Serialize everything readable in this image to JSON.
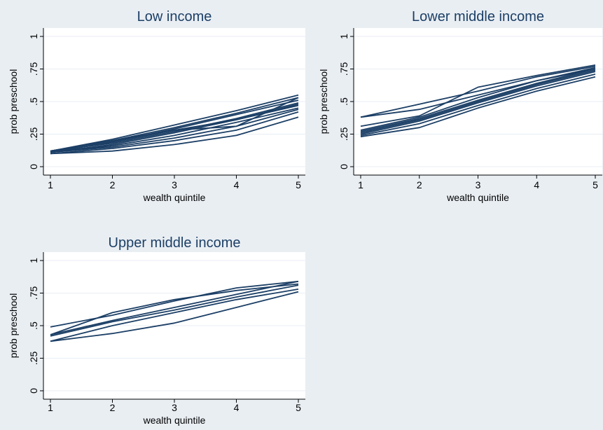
{
  "chart_data": [
    {
      "type": "line",
      "title": "Low income",
      "xlabel": "wealth quintile",
      "ylabel": "prob preschool",
      "x": [
        1,
        2,
        3,
        4,
        5
      ],
      "xticks": [
        "1",
        "2",
        "3",
        "4",
        "5"
      ],
      "yticks": [
        0,
        0.25,
        0.5,
        0.75,
        1
      ],
      "ytick_labels": [
        "0",
        ".25",
        ".5",
        ".75",
        "1"
      ],
      "xlim": [
        1,
        5
      ],
      "ylim": [
        0,
        1
      ],
      "grid": true,
      "series": [
        {
          "values": [
            0.12,
            0.21,
            0.32,
            0.43,
            0.55
          ]
        },
        {
          "values": [
            0.12,
            0.2,
            0.3,
            0.41,
            0.53
          ]
        },
        {
          "values": [
            0.11,
            0.19,
            0.29,
            0.4,
            0.51
          ]
        },
        {
          "values": [
            0.12,
            0.18,
            0.27,
            0.37,
            0.49
          ]
        },
        {
          "values": [
            0.11,
            0.17,
            0.26,
            0.36,
            0.47
          ]
        },
        {
          "values": [
            0.11,
            0.16,
            0.24,
            0.34,
            0.45
          ]
        },
        {
          "values": [
            0.11,
            0.15,
            0.22,
            0.31,
            0.44
          ]
        },
        {
          "values": [
            0.1,
            0.14,
            0.2,
            0.28,
            0.42
          ]
        },
        {
          "values": [
            0.1,
            0.12,
            0.17,
            0.24,
            0.38
          ]
        },
        {
          "values": [
            0.12,
            0.2,
            0.28,
            0.36,
            0.48
          ]
        },
        {
          "values": [
            0.11,
            0.19,
            0.28,
            0.31,
            0.53
          ]
        }
      ]
    },
    {
      "type": "line",
      "title": "Lower middle income",
      "xlabel": "wealth quintile",
      "ylabel": "prob preschool",
      "x": [
        1,
        2,
        3,
        4,
        5
      ],
      "xticks": [
        "1",
        "2",
        "3",
        "4",
        "5"
      ],
      "yticks": [
        0,
        0.25,
        0.5,
        0.75,
        1
      ],
      "ytick_labels": [
        "0",
        ".25",
        ".5",
        ".75",
        "1"
      ],
      "xlim": [
        1,
        5
      ],
      "ylim": [
        0,
        1
      ],
      "grid": true,
      "series": [
        {
          "values": [
            0.38,
            0.48,
            0.58,
            0.69,
            0.77
          ]
        },
        {
          "values": [
            0.38,
            0.44,
            0.55,
            0.66,
            0.75
          ]
        },
        {
          "values": [
            0.31,
            0.39,
            0.61,
            0.7,
            0.78
          ]
        },
        {
          "values": [
            0.28,
            0.38,
            0.53,
            0.66,
            0.76
          ]
        },
        {
          "values": [
            0.27,
            0.37,
            0.51,
            0.64,
            0.75
          ]
        },
        {
          "values": [
            0.26,
            0.36,
            0.5,
            0.63,
            0.74
          ]
        },
        {
          "values": [
            0.25,
            0.35,
            0.49,
            0.62,
            0.73
          ]
        },
        {
          "values": [
            0.24,
            0.33,
            0.47,
            0.6,
            0.71
          ]
        },
        {
          "values": [
            0.23,
            0.3,
            0.45,
            0.58,
            0.69
          ]
        }
      ]
    },
    {
      "type": "line",
      "title": "Upper middle income",
      "xlabel": "wealth quintile",
      "ylabel": "prob preschool",
      "x": [
        1,
        2,
        3,
        4,
        5
      ],
      "xticks": [
        "1",
        "2",
        "3",
        "4",
        "5"
      ],
      "yticks": [
        0,
        0.25,
        0.5,
        0.75,
        1
      ],
      "ytick_labels": [
        "0",
        ".25",
        ".5",
        ".75",
        "1"
      ],
      "xlim": [
        1,
        5
      ],
      "ylim": [
        0,
        1
      ],
      "grid": true,
      "series": [
        {
          "values": [
            0.49,
            0.58,
            0.69,
            0.79,
            0.84
          ]
        },
        {
          "values": [
            0.43,
            0.6,
            0.7,
            0.77,
            0.82
          ]
        },
        {
          "values": [
            0.43,
            0.54,
            0.64,
            0.74,
            0.84
          ]
        },
        {
          "values": [
            0.42,
            0.53,
            0.62,
            0.72,
            0.81
          ]
        },
        {
          "values": [
            0.38,
            0.5,
            0.6,
            0.7,
            0.78
          ]
        },
        {
          "values": [
            0.38,
            0.44,
            0.52,
            0.64,
            0.76
          ]
        }
      ]
    }
  ],
  "colors": {
    "background": "#e9eef3",
    "plot_background": "#ffffff",
    "line": "#1c3f66",
    "title": "#1c3f66",
    "grid": "#e8eef4"
  }
}
